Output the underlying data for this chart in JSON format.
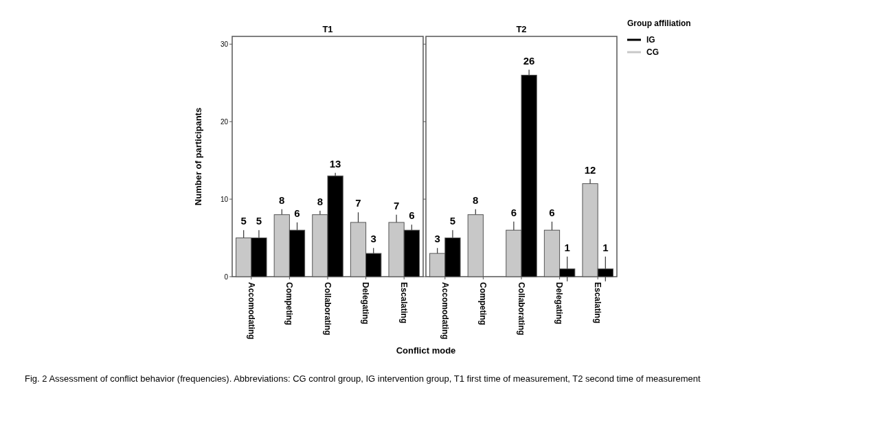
{
  "chart_data": [
    {
      "type": "bar",
      "title": "T1",
      "xlabel": "Conflict mode",
      "ylabel": "Number of participants",
      "categories": [
        "Accomodating",
        "Competing",
        "Collaborating",
        "Delegating",
        "Escalating"
      ],
      "ylim": [
        0,
        31
      ],
      "yticks": [
        0,
        10,
        20,
        30
      ],
      "data_labels": true,
      "series": [
        {
          "color": "#c8c8c8",
          "values": [
            5,
            8,
            8,
            7,
            7
          ],
          "errors": [
            1.0,
            0.7,
            0.5,
            1.3,
            1.0
          ]
        },
        {
          "color": "#000000",
          "values": [
            5,
            6,
            13,
            3,
            6
          ],
          "errors": [
            1.0,
            1.0,
            0.4,
            0.7,
            0.7
          ]
        }
      ],
      "annotations": [
        "Fig. 2 Assessment of conflict behavior (frequencies). Abbreviations: CG control group, IG intervention group, T1 first time of measurement, T2 second time of measurement"
      ]
    },
    {
      "type": "bar",
      "title": "T2",
      "categories": [
        "Accomodating",
        "Competing",
        "Collaborating",
        "Delegating",
        "Escalating"
      ],
      "ylim": [
        0,
        31
      ],
      "yticks": [
        0,
        10,
        20,
        30
      ],
      "tick_labels": "x",
      "data_labels": true,
      "legend": "right",
      "legend_title": "Group affiliation",
      "series": [
        {
          "name": "CG",
          "color": "#c8c8c8",
          "values": [
            3,
            8,
            6,
            6,
            12
          ],
          "errors": [
            0.7,
            0.7,
            1.1,
            1.1,
            0.6
          ]
        },
        {
          "name": "IG",
          "color": "#000000",
          "values": [
            5,
            null,
            26,
            1,
            1
          ],
          "errors": [
            1.0,
            null,
            0.7,
            1.6,
            1.6
          ]
        }
      ]
    }
  ]
}
